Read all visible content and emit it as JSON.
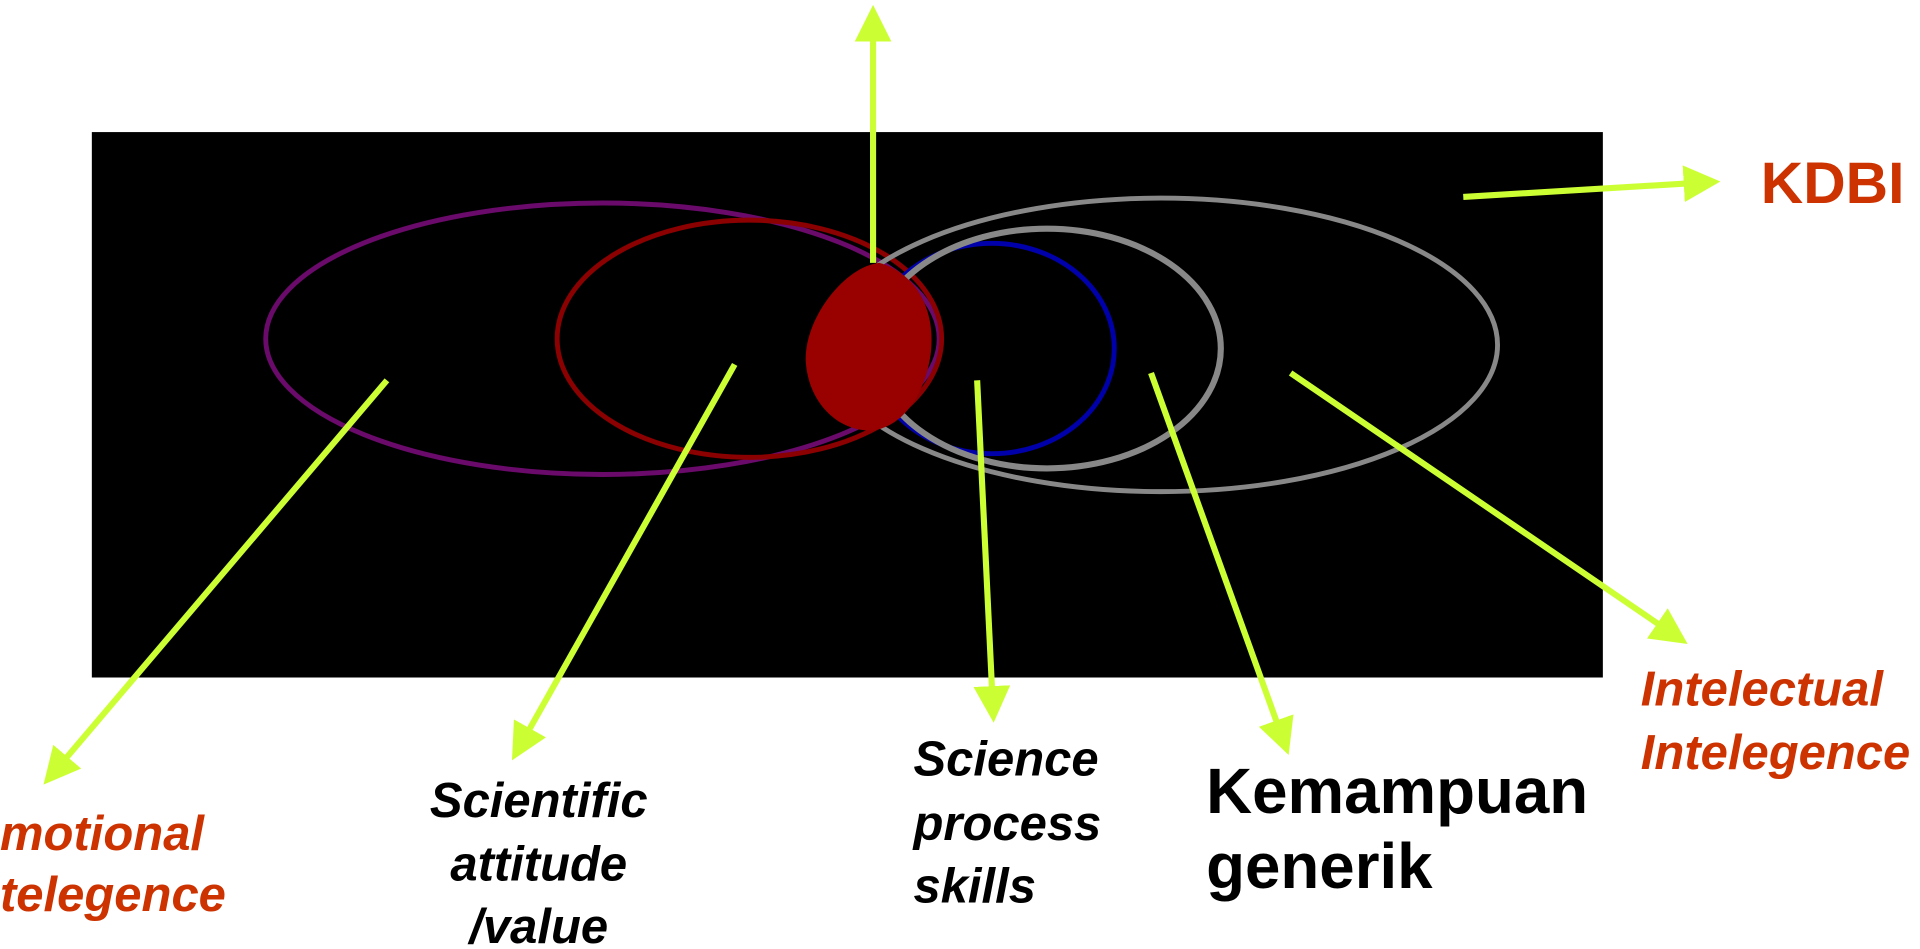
{
  "top_label": "KDBI",
  "labels": [
    {
      "lines": [
        "motional",
        "telegence"
      ]
    },
    {
      "lines": [
        "Scientific",
        "attitude",
        "/value"
      ]
    },
    {
      "lines": [
        "Science",
        "process",
        "skills"
      ]
    },
    {
      "lines": [
        "Kemampuan",
        "generik"
      ]
    },
    {
      "lines": [
        "Intelectual",
        "Intelegence"
      ]
    }
  ]
}
